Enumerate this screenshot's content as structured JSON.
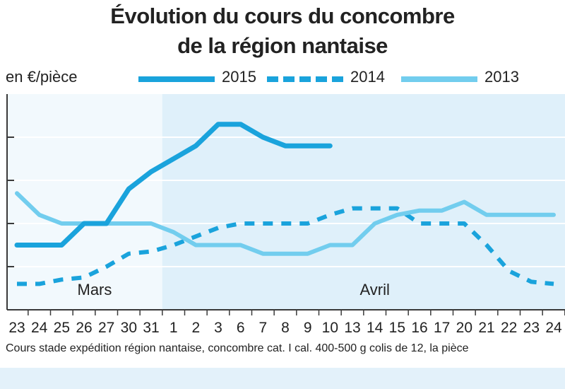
{
  "chart_data": {
    "type": "line",
    "title_line1": "Évolution du cours du concombre",
    "title_line2": "de la région nantaise",
    "ylabel": "en €/pièce",
    "caption": "Cours stade expédition région nantaise, concombre cat. I cal. 400-500 g colis de 12, la pièce",
    "month_labels": [
      "Mars",
      "Avril"
    ],
    "categories": [
      "23",
      "24",
      "25",
      "26",
      "27",
      "30",
      "31",
      "1",
      "2",
      "3",
      "6",
      "7",
      "8",
      "9",
      "10",
      "13",
      "14",
      "15",
      "16",
      "17",
      "20",
      "21",
      "22",
      "23",
      "24"
    ],
    "grid": "horizontal",
    "shaded_from_index": 6.5,
    "ylim": [
      0,
      5
    ],
    "yticks": [
      1,
      2,
      3,
      4
    ],
    "series": [
      {
        "name": "2015",
        "style": "solid-thick",
        "color": "#1aa3dc",
        "values": [
          1.5,
          1.5,
          1.5,
          2.0,
          2.0,
          2.8,
          3.2,
          3.5,
          3.8,
          4.3,
          4.3,
          4.0,
          3.8,
          3.8,
          3.8,
          null,
          null,
          null,
          null,
          null,
          null,
          null,
          null,
          null,
          null
        ]
      },
      {
        "name": "2014",
        "style": "dashed",
        "color": "#1aa3dc",
        "values": [
          0.6,
          0.6,
          0.7,
          0.75,
          1.0,
          1.3,
          1.35,
          1.5,
          1.7,
          1.9,
          2.0,
          2.0,
          2.0,
          2.0,
          2.2,
          2.35,
          2.35,
          2.35,
          2.0,
          2.0,
          2.0,
          1.5,
          0.9,
          0.65,
          0.6
        ]
      },
      {
        "name": "2013",
        "style": "solid-light",
        "color": "#72cdee",
        "values": [
          2.7,
          2.2,
          2.0,
          2.0,
          2.0,
          2.0,
          2.0,
          1.8,
          1.5,
          1.5,
          1.5,
          1.3,
          1.3,
          1.3,
          1.5,
          1.5,
          2.0,
          2.2,
          2.3,
          2.3,
          2.5,
          2.2,
          2.2,
          2.2,
          2.2
        ]
      }
    ]
  }
}
